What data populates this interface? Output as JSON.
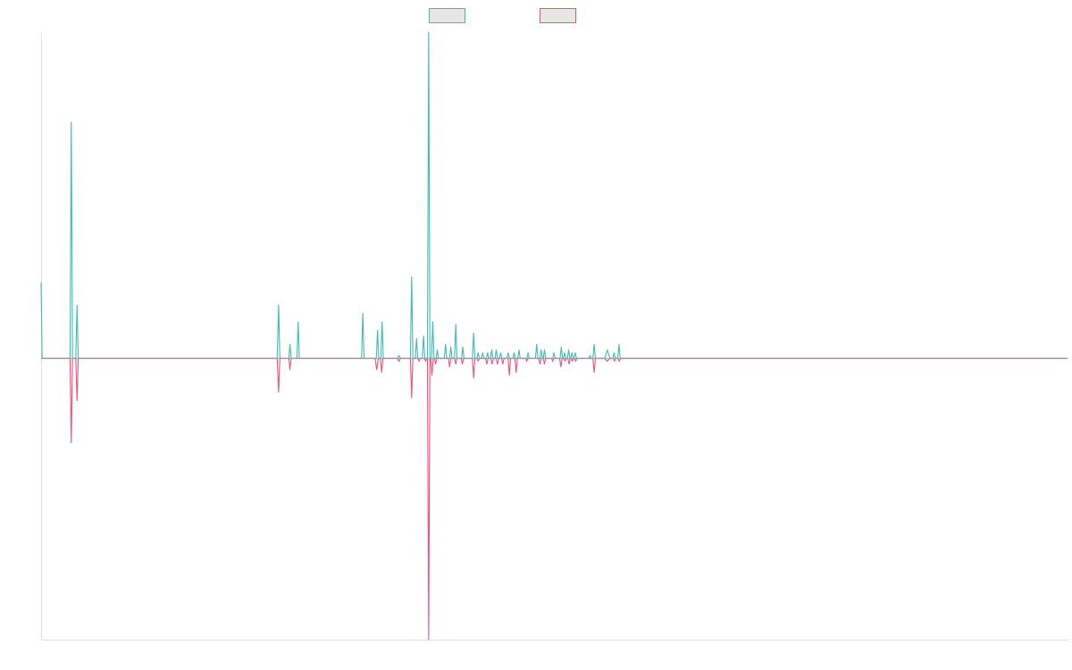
{
  "colors": {
    "series_a": "#3dbdb5",
    "series_b": "#f0527a",
    "axis": "#e0e0e0",
    "zero_line": "#7fa8a8",
    "legend_fill": "#e6e6e6"
  },
  "chart_data": {
    "type": "line",
    "title": "",
    "xlabel": "",
    "ylabel": "",
    "grid": false,
    "legend_placement": "top-center",
    "ylim": [
      -1.0,
      1.16
    ],
    "xlim": [
      0,
      500
    ],
    "series": [
      {
        "color": "#3dbdb5",
        "points": [
          [
            0,
            0.27
          ],
          [
            0.5,
            0
          ],
          [
            14.1,
            0
          ],
          [
            14.7,
            0.84
          ],
          [
            15.3,
            0
          ],
          [
            16.9,
            0
          ],
          [
            17.5,
            0.19
          ],
          [
            18.1,
            0
          ],
          [
            115,
            0
          ],
          [
            115.7,
            0.19
          ],
          [
            116.3,
            0
          ],
          [
            120.7,
            0
          ],
          [
            121.2,
            0.05
          ],
          [
            121.8,
            0
          ],
          [
            124.6,
            0
          ],
          [
            125.2,
            0.13
          ],
          [
            125.8,
            0
          ],
          [
            156.1,
            0
          ],
          [
            156.7,
            0.16
          ],
          [
            157.3,
            0
          ],
          [
            163.3,
            0
          ],
          [
            163.9,
            0.1
          ],
          [
            164.5,
            0
          ],
          [
            165.5,
            0
          ],
          [
            166.1,
            0.13
          ],
          [
            166.7,
            0
          ],
          [
            173.5,
            0
          ],
          [
            174.3,
            0.01
          ],
          [
            175.1,
            0
          ],
          [
            179.9,
            0
          ],
          [
            180.5,
            0.29
          ],
          [
            181.1,
            0
          ],
          [
            182.3,
            0
          ],
          [
            182.9,
            0.07
          ],
          [
            183.5,
            0
          ],
          [
            185.7,
            0
          ],
          [
            186.3,
            0.08
          ],
          [
            186.9,
            0
          ],
          [
            188.2,
            0
          ],
          [
            188.8,
            1.16
          ],
          [
            189.4,
            0
          ],
          [
            190.2,
            0
          ],
          [
            190.8,
            0.13
          ],
          [
            191.4,
            0
          ],
          [
            192.4,
            0
          ],
          [
            193,
            0.03
          ],
          [
            193.6,
            0
          ],
          [
            196.4,
            0
          ],
          [
            197,
            0.05
          ],
          [
            197.6,
            0
          ],
          [
            199,
            0
          ],
          [
            199.6,
            0.04
          ],
          [
            200.2,
            0
          ],
          [
            201.4,
            0
          ],
          [
            202,
            0.12
          ],
          [
            202.6,
            0
          ],
          [
            204.8,
            0
          ],
          [
            205.4,
            0.04
          ],
          [
            206,
            0
          ],
          [
            210.1,
            0
          ],
          [
            210.7,
            0.09
          ],
          [
            211.3,
            0
          ],
          [
            212.3,
            0
          ],
          [
            212.9,
            0.02
          ],
          [
            213.5,
            0
          ],
          [
            214.5,
            0
          ],
          [
            215.1,
            0.02
          ],
          [
            215.7,
            0
          ],
          [
            216.9,
            0
          ],
          [
            217.5,
            0.02
          ],
          [
            218.1,
            0
          ],
          [
            218.9,
            0
          ],
          [
            219.5,
            0.03
          ],
          [
            220.1,
            0
          ],
          [
            221.1,
            0
          ],
          [
            221.7,
            0.03
          ],
          [
            222.3,
            0
          ],
          [
            223.3,
            0
          ],
          [
            223.9,
            0.02
          ],
          [
            224.5,
            0
          ],
          [
            226.9,
            0
          ],
          [
            227.5,
            0.02
          ],
          [
            228.1,
            0
          ],
          [
            229.8,
            0
          ],
          [
            230.4,
            0.02
          ],
          [
            231,
            0
          ],
          [
            232.2,
            0
          ],
          [
            232.8,
            0.03
          ],
          [
            233.4,
            0
          ],
          [
            236.6,
            0
          ],
          [
            237.2,
            0.02
          ],
          [
            237.8,
            0
          ],
          [
            240.8,
            0
          ],
          [
            241.4,
            0.05
          ],
          [
            242,
            0
          ],
          [
            243,
            0
          ],
          [
            243.6,
            0.03
          ],
          [
            244.2,
            0
          ],
          [
            244.6,
            0
          ],
          [
            245.2,
            0.03
          ],
          [
            245.8,
            0
          ],
          [
            249.2,
            0
          ],
          [
            249.8,
            0.02
          ],
          [
            250.4,
            0
          ],
          [
            252.8,
            0
          ],
          [
            253.4,
            0.04
          ],
          [
            254,
            0
          ],
          [
            254.4,
            0
          ],
          [
            255,
            0.02
          ],
          [
            255.6,
            0
          ],
          [
            256.4,
            0
          ],
          [
            257,
            0.03
          ],
          [
            257.6,
            0
          ],
          [
            258,
            0
          ],
          [
            258.6,
            0.02
          ],
          [
            259.2,
            0
          ],
          [
            259.6,
            0
          ],
          [
            260.2,
            0.02
          ],
          [
            260.8,
            0
          ],
          [
            266.8,
            0
          ],
          [
            267.4,
            0.01
          ],
          [
            268,
            0
          ],
          [
            268.8,
            0
          ],
          [
            269.4,
            0.05
          ],
          [
            270,
            0
          ],
          [
            274.5,
            0
          ],
          [
            275.8,
            0.03
          ],
          [
            277.1,
            0
          ],
          [
            278.5,
            0
          ],
          [
            279.1,
            0.02
          ],
          [
            279.7,
            0
          ],
          [
            280.9,
            0
          ],
          [
            281.5,
            0.05
          ],
          [
            282.1,
            0
          ],
          [
            500,
            0
          ]
        ]
      },
      {
        "color": "#f0527a",
        "points": [
          [
            0,
            0
          ],
          [
            14.1,
            0
          ],
          [
            14.7,
            -0.3
          ],
          [
            15.3,
            0
          ],
          [
            16.9,
            0
          ],
          [
            17.5,
            -0.15
          ],
          [
            18.1,
            0
          ],
          [
            115,
            0
          ],
          [
            115.7,
            -0.12
          ],
          [
            116.3,
            0
          ],
          [
            120.7,
            0
          ],
          [
            121.2,
            -0.04
          ],
          [
            121.8,
            0
          ],
          [
            162.7,
            0
          ],
          [
            163.5,
            -0.04
          ],
          [
            164.3,
            0
          ],
          [
            165.3,
            0
          ],
          [
            165.9,
            -0.05
          ],
          [
            166.5,
            0
          ],
          [
            173.5,
            0
          ],
          [
            174.3,
            -0.01
          ],
          [
            175.1,
            0
          ],
          [
            179.9,
            0
          ],
          [
            180.5,
            -0.14
          ],
          [
            181.1,
            0
          ],
          [
            183.5,
            0
          ],
          [
            184.1,
            -0.01
          ],
          [
            184.7,
            0
          ],
          [
            186.7,
            0
          ],
          [
            187.3,
            -0.01
          ],
          [
            187.9,
            0
          ],
          [
            188.2,
            0
          ],
          [
            188.8,
            -1.0
          ],
          [
            189.4,
            0
          ],
          [
            189.8,
            0
          ],
          [
            190.4,
            -0.06
          ],
          [
            191,
            0
          ],
          [
            191.6,
            0
          ],
          [
            192.2,
            -0.02
          ],
          [
            192.8,
            0
          ],
          [
            198.4,
            0
          ],
          [
            199,
            -0.03
          ],
          [
            199.6,
            0
          ],
          [
            201.4,
            0
          ],
          [
            202,
            -0.02
          ],
          [
            202.6,
            0
          ],
          [
            204.6,
            0
          ],
          [
            205.2,
            -0.02
          ],
          [
            205.8,
            0
          ],
          [
            210.1,
            0
          ],
          [
            210.7,
            -0.07
          ],
          [
            211.3,
            0
          ],
          [
            212.3,
            0
          ],
          [
            212.9,
            -0.01
          ],
          [
            213.5,
            0
          ],
          [
            216.5,
            0
          ],
          [
            217.1,
            -0.02
          ],
          [
            217.7,
            0
          ],
          [
            219.1,
            0
          ],
          [
            219.7,
            -0.02
          ],
          [
            220.3,
            0
          ],
          [
            221.7,
            0
          ],
          [
            222.3,
            -0.02
          ],
          [
            222.9,
            0
          ],
          [
            224.3,
            0
          ],
          [
            224.9,
            -0.02
          ],
          [
            225.5,
            0
          ],
          [
            227.5,
            0
          ],
          [
            228.1,
            -0.06
          ],
          [
            228.7,
            0
          ],
          [
            230.8,
            0
          ],
          [
            231.4,
            -0.05
          ],
          [
            232,
            0
          ],
          [
            236,
            0
          ],
          [
            236.6,
            -0.01
          ],
          [
            237.2,
            0
          ],
          [
            242.4,
            0
          ],
          [
            243,
            -0.02
          ],
          [
            243.6,
            0
          ],
          [
            244.6,
            0
          ],
          [
            245.2,
            -0.02
          ],
          [
            245.8,
            0
          ],
          [
            248.6,
            0
          ],
          [
            249.2,
            -0.01
          ],
          [
            249.8,
            0
          ],
          [
            252.6,
            0
          ],
          [
            253.2,
            -0.03
          ],
          [
            253.8,
            0
          ],
          [
            254.6,
            0
          ],
          [
            255.2,
            -0.01
          ],
          [
            255.8,
            0
          ],
          [
            256.6,
            0
          ],
          [
            257.2,
            -0.02
          ],
          [
            257.8,
            0
          ],
          [
            258.2,
            0
          ],
          [
            258.8,
            -0.01
          ],
          [
            259.4,
            0
          ],
          [
            259.8,
            0
          ],
          [
            260.4,
            -0.01
          ],
          [
            261,
            0
          ],
          [
            268.8,
            0
          ],
          [
            269.4,
            -0.05
          ],
          [
            270,
            0
          ],
          [
            274.5,
            0
          ],
          [
            275.8,
            -0.01
          ],
          [
            277.1,
            0
          ],
          [
            278.7,
            0
          ],
          [
            279.3,
            -0.01
          ],
          [
            279.9,
            0
          ],
          [
            281,
            0
          ],
          [
            281.6,
            -0.01
          ],
          [
            282.2,
            0
          ],
          [
            500,
            0
          ]
        ]
      }
    ]
  }
}
